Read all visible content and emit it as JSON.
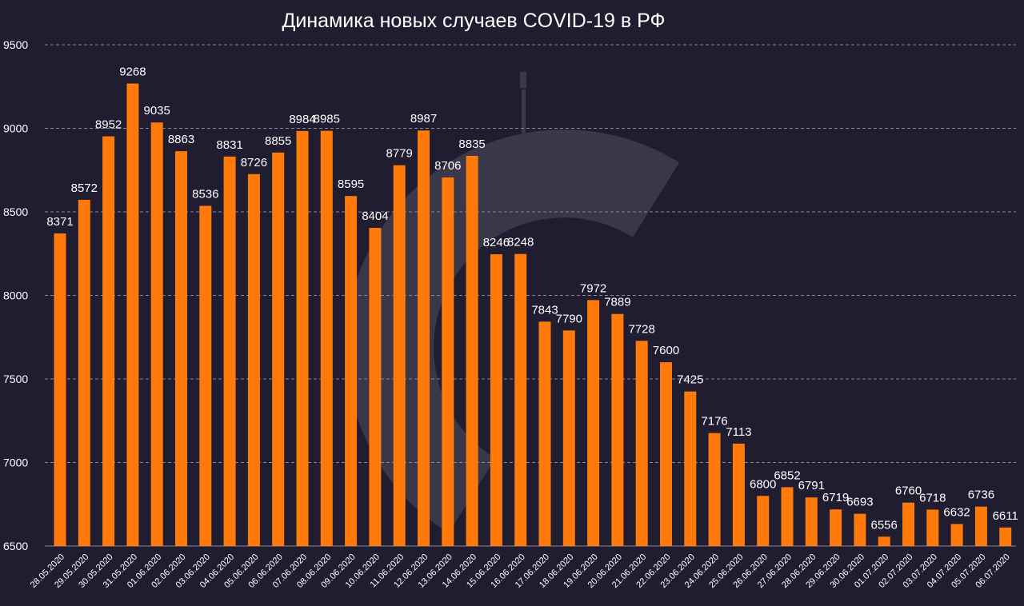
{
  "chart_data": {
    "type": "bar",
    "title": "Динамика новых случаев COVID-19 в РФ",
    "xlabel": "",
    "ylabel": "",
    "ylim": [
      6500,
      9500
    ],
    "yticks": [
      6500,
      7000,
      7500,
      8000,
      8500,
      9000,
      9500
    ],
    "grid": true,
    "bar_color": "#ff7a0a",
    "background": "#1f1d2f",
    "categories": [
      "28.05.2020",
      "29.05.2020",
      "30.05.2020",
      "31.05.2020",
      "01.06.2020",
      "02.06.2020",
      "03.06.2020",
      "04.06.2020",
      "05.06.2020",
      "06.06.2020",
      "07.06.2020",
      "08.06.2020",
      "09.06.2020",
      "10.06.2020",
      "11.06.2020",
      "12.06.2020",
      "13.06.2020",
      "14.06.2020",
      "15.06.2020",
      "16.06.2020",
      "17.06.2020",
      "18.06.2020",
      "19.06.2020",
      "20.06.2020",
      "21.06.2020",
      "22.06.2020",
      "23.06.2020",
      "24.06.2020",
      "25.06.2020",
      "26.06.2020",
      "27.06.2020",
      "28.06.2020",
      "29.06.2020",
      "30.06.2020",
      "01.07.2020",
      "02.07.2020",
      "03.07.2020",
      "04.07.2020",
      "05.07.2020",
      "06.07.2020"
    ],
    "values": [
      8371,
      8572,
      8952,
      9268,
      9035,
      8863,
      8536,
      8831,
      8726,
      8855,
      8984,
      8985,
      8595,
      8404,
      8779,
      8987,
      8706,
      8835,
      8246,
      8248,
      7843,
      7790,
      7972,
      7889,
      7728,
      7600,
      7425,
      7176,
      7113,
      6800,
      6852,
      6791,
      6719,
      6693,
      6556,
      6760,
      6718,
      6632,
      6736,
      6611
    ]
  }
}
